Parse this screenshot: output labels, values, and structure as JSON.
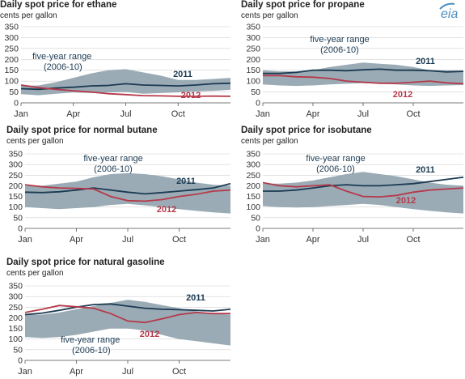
{
  "logo": {
    "text": "eia"
  },
  "colors": {
    "range": "#9aabb5",
    "y2011": "#1b3a52",
    "y2012": "#b5394a",
    "axis": "#555555",
    "grid": "#d0d0d0"
  },
  "chart_data": [
    {
      "type": "area",
      "title": "Daily spot price for ethane",
      "ylabel": "cents per gallon",
      "xticks": [
        "Jan",
        "Apr",
        "Jul",
        "Oct"
      ],
      "yticks": [
        0,
        50,
        100,
        150,
        200,
        250,
        300,
        350
      ],
      "ylim": [
        0,
        350
      ],
      "x": [
        0,
        1,
        2,
        3,
        4,
        5,
        6,
        7,
        8,
        9,
        10,
        11,
        12
      ],
      "range_label": [
        "five-year range",
        "(2006-10)"
      ],
      "range_low": [
        40,
        35,
        42,
        48,
        45,
        48,
        50,
        42,
        45,
        48,
        52,
        55,
        60
      ],
      "range_high": [
        78,
        80,
        95,
        115,
        135,
        150,
        155,
        140,
        125,
        105,
        105,
        110,
        115
      ],
      "series": [
        {
          "name": "2011",
          "values": [
            65,
            62,
            68,
            72,
            78,
            80,
            88,
            82,
            80,
            78,
            82,
            88,
            90
          ]
        },
        {
          "name": "2012",
          "values": [
            82,
            70,
            62,
            55,
            50,
            42,
            38,
            33,
            32,
            30,
            30,
            31,
            30
          ]
        }
      ]
    },
    {
      "type": "area",
      "title": "Daily spot price for propane",
      "ylabel": "cents per gallon",
      "xticks": [
        "Jan",
        "Apr",
        "Jul",
        "Oct"
      ],
      "yticks": [
        0,
        50,
        100,
        150,
        200,
        250,
        300,
        350
      ],
      "ylim": [
        0,
        350
      ],
      "x": [
        0,
        1,
        2,
        3,
        4,
        5,
        6,
        7,
        8,
        9,
        10,
        11,
        12
      ],
      "range_label": [
        "five-year range",
        "(2006-10)"
      ],
      "range_low": [
        85,
        80,
        78,
        80,
        85,
        88,
        90,
        88,
        85,
        80,
        78,
        80,
        82
      ],
      "range_high": [
        150,
        145,
        145,
        150,
        165,
        175,
        185,
        180,
        175,
        165,
        150,
        150,
        148
      ],
      "series": [
        {
          "name": "2011",
          "values": [
            135,
            135,
            140,
            150,
            150,
            148,
            152,
            155,
            150,
            150,
            148,
            142,
            145
          ]
        },
        {
          "name": "2012",
          "values": [
            125,
            125,
            120,
            118,
            112,
            100,
            95,
            90,
            90,
            95,
            100,
            92,
            88
          ]
        }
      ]
    },
    {
      "type": "area",
      "title": "Daily spot price for normal butane",
      "ylabel": "cents per gallon",
      "xticks": [
        "Jan",
        "Apr",
        "Jul",
        "Oct"
      ],
      "yticks": [
        0,
        50,
        100,
        150,
        200,
        250,
        300,
        350
      ],
      "ylim": [
        0,
        350
      ],
      "x": [
        0,
        1,
        2,
        3,
        4,
        5,
        6,
        7,
        8,
        9,
        10,
        11,
        12
      ],
      "range_label": [
        "five-year range",
        "(2006-10)"
      ],
      "range_low": [
        100,
        95,
        90,
        95,
        100,
        110,
        115,
        108,
        100,
        90,
        82,
        75,
        70
      ],
      "range_high": [
        200,
        200,
        210,
        220,
        240,
        255,
        260,
        255,
        245,
        230,
        215,
        205,
        200
      ],
      "series": [
        {
          "name": "2011",
          "values": [
            170,
            168,
            172,
            180,
            190,
            180,
            170,
            162,
            168,
            175,
            182,
            190,
            210
          ]
        },
        {
          "name": "2012",
          "values": [
            205,
            195,
            190,
            188,
            185,
            150,
            130,
            128,
            135,
            150,
            160,
            175,
            180
          ]
        }
      ]
    },
    {
      "type": "area",
      "title": "Daily spot price for isobutane",
      "ylabel": "cents per gallon",
      "xticks": [
        "Jan",
        "Apr",
        "Jul",
        "Oct"
      ],
      "yticks": [
        0,
        50,
        100,
        150,
        200,
        250,
        300,
        350
      ],
      "ylim": [
        0,
        350
      ],
      "x": [
        0,
        1,
        2,
        3,
        4,
        5,
        6,
        7,
        8,
        9,
        10,
        11,
        12
      ],
      "range_label": [
        "five-year range",
        "(2006-10)"
      ],
      "range_low": [
        105,
        100,
        98,
        100,
        105,
        110,
        115,
        110,
        100,
        90,
        82,
        75,
        70
      ],
      "range_high": [
        210,
        210,
        215,
        225,
        240,
        255,
        265,
        255,
        245,
        230,
        215,
        205,
        200
      ],
      "series": [
        {
          "name": "2011",
          "values": [
            175,
            175,
            180,
            190,
            200,
            205,
            200,
            200,
            205,
            210,
            220,
            230,
            240
          ]
        },
        {
          "name": "2012",
          "values": [
            215,
            200,
            195,
            200,
            205,
            175,
            150,
            148,
            155,
            170,
            180,
            185,
            190
          ]
        }
      ]
    },
    {
      "type": "area",
      "title": "Daily spot price for natural gasoline",
      "ylabel": "cents per gallon",
      "xticks": [
        "Jan",
        "Apr",
        "Jul",
        "Oct"
      ],
      "yticks": [
        0,
        50,
        100,
        150,
        200,
        250,
        300,
        350
      ],
      "ylim": [
        0,
        350
      ],
      "x": [
        0,
        1,
        2,
        3,
        4,
        5,
        6,
        7,
        8,
        9,
        10,
        11,
        12
      ],
      "range_label": [
        "five-year range",
        "(2006-10)"
      ],
      "range_low": [
        110,
        105,
        110,
        120,
        135,
        150,
        150,
        140,
        120,
        100,
        90,
        80,
        70
      ],
      "range_high": [
        215,
        215,
        225,
        240,
        255,
        270,
        285,
        275,
        260,
        245,
        230,
        220,
        215
      ],
      "series": [
        {
          "name": "2011",
          "values": [
            215,
            222,
            235,
            250,
            262,
            265,
            255,
            245,
            240,
            238,
            235,
            232,
            240
          ]
        },
        {
          "name": "2012",
          "values": [
            225,
            240,
            258,
            252,
            245,
            220,
            185,
            178,
            195,
            215,
            225,
            220,
            220
          ]
        }
      ]
    }
  ]
}
